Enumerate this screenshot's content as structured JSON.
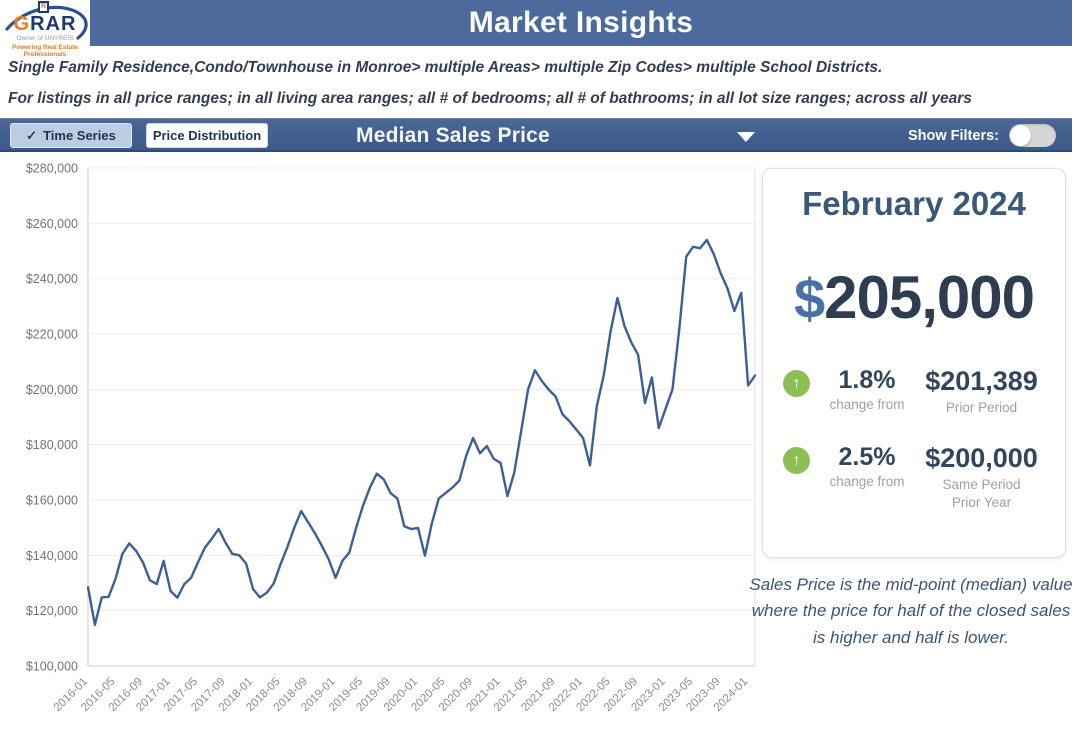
{
  "header": {
    "title": "Market Insights"
  },
  "logo": {
    "brand_g": "G",
    "brand_rar": "RAR",
    "r_mark": "R",
    "owner_line": "Owner of UNYREIS",
    "tagline": "Powering Real Estate Professionals"
  },
  "filters_summary": {
    "line1": "Single Family Residence,Condo/Townhouse in Monroe> multiple Areas> multiple Zip Codes> multiple School Districts.",
    "line2": "For listings in all price ranges; in all living area ranges; all # of bedrooms; all # of bathrooms; in all lot size ranges; across all years built."
  },
  "toolbar": {
    "time_series_label": "Time Series",
    "price_distribution_label": "Price Distribution",
    "metric_title": "Median Sales Price",
    "show_filters_label": "Show Filters:"
  },
  "icons": {
    "check": "✓",
    "up_arrow": "↑"
  },
  "summary_card": {
    "period_label": "February 2024",
    "currency_symbol": "$",
    "value": "205,000",
    "stats": [
      {
        "pct": "1.8%",
        "caption": "change from",
        "value": "$201,389",
        "value_label": "Prior Period"
      },
      {
        "pct": "2.5%",
        "caption": "change from",
        "value": "$200,000",
        "value_label": "Same Period Prior Year"
      }
    ]
  },
  "footnote": "Sales Price is the mid-point (median) value where the price for half of the closed sales is higher and half is lower.",
  "colors": {
    "header_bg": "#4c6a9c",
    "toolbar_bg": "#3c5a8a",
    "accent_orange": "#e87a22",
    "brand_navy": "#1d3a6b",
    "up_green": "#8ebf55",
    "line_blue": "#3c5f95"
  },
  "chart_data": {
    "type": "line",
    "title": "Median Sales Price",
    "xlabel": "",
    "ylabel": "",
    "ylim": [
      100000,
      280000
    ],
    "ytick_step": 20000,
    "xtick_every": 4,
    "grid": true,
    "legend": "none",
    "line_color": "#3c5f95",
    "x": [
      "2016-01",
      "2016-02",
      "2016-03",
      "2016-04",
      "2016-05",
      "2016-06",
      "2016-07",
      "2016-08",
      "2016-09",
      "2016-10",
      "2016-11",
      "2016-12",
      "2017-01",
      "2017-02",
      "2017-03",
      "2017-04",
      "2017-05",
      "2017-06",
      "2017-07",
      "2017-08",
      "2017-09",
      "2017-10",
      "2017-11",
      "2017-12",
      "2018-01",
      "2018-02",
      "2018-03",
      "2018-04",
      "2018-05",
      "2018-06",
      "2018-07",
      "2018-08",
      "2018-09",
      "2018-10",
      "2018-11",
      "2018-12",
      "2019-01",
      "2019-02",
      "2019-03",
      "2019-04",
      "2019-05",
      "2019-06",
      "2019-07",
      "2019-08",
      "2019-09",
      "2019-10",
      "2019-11",
      "2019-12",
      "2020-01",
      "2020-02",
      "2020-03",
      "2020-04",
      "2020-05",
      "2020-06",
      "2020-07",
      "2020-08",
      "2020-09",
      "2020-10",
      "2020-11",
      "2020-12",
      "2021-01",
      "2021-02",
      "2021-03",
      "2021-04",
      "2021-05",
      "2021-06",
      "2021-07",
      "2021-08",
      "2021-09",
      "2021-10",
      "2021-11",
      "2021-12",
      "2022-01",
      "2022-02",
      "2022-03",
      "2022-04",
      "2022-05",
      "2022-06",
      "2022-07",
      "2022-08",
      "2022-09",
      "2022-10",
      "2022-11",
      "2022-12",
      "2023-01",
      "2023-02",
      "2023-03",
      "2023-04",
      "2023-05",
      "2023-06",
      "2023-07",
      "2023-08",
      "2023-09",
      "2023-10",
      "2023-11",
      "2023-12",
      "2024-01",
      "2024-02"
    ],
    "values": [
      128500,
      114900,
      124800,
      125000,
      131500,
      140500,
      144300,
      141600,
      137400,
      131000,
      129600,
      138000,
      127100,
      124700,
      129600,
      131900,
      137500,
      142800,
      146000,
      149500,
      144600,
      140500,
      140000,
      137000,
      127800,
      124800,
      126500,
      129800,
      136800,
      143000,
      150000,
      156000,
      152000,
      148000,
      143500,
      138600,
      131900,
      138000,
      141000,
      150000,
      158000,
      164500,
      169500,
      167500,
      162500,
      160500,
      150500,
      149500,
      149900,
      139900,
      151500,
      160500,
      162500,
      164500,
      167000,
      176000,
      182400,
      176900,
      179500,
      174900,
      173400,
      161400,
      170000,
      185000,
      200000,
      206900,
      203000,
      199900,
      197400,
      191000,
      188500,
      185500,
      182400,
      172500,
      194000,
      205000,
      221000,
      233000,
      223000,
      217000,
      212500,
      195000,
      204300,
      186000,
      193000,
      200000,
      222000,
      248000,
      251500,
      251000,
      254000,
      248900,
      242000,
      236500,
      228300,
      234900,
      201389,
      205000
    ]
  }
}
